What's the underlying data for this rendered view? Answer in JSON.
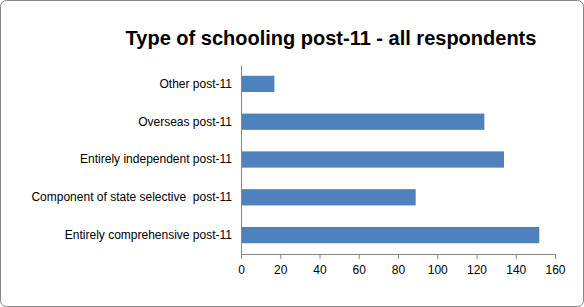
{
  "chart_data": {
    "type": "bar",
    "orientation": "horizontal",
    "title": "Type of schooling post-11 - all respondents",
    "categories": [
      "Other post-11",
      "Overseas post-11",
      "Entirely independent post-11",
      "Component of state selective  post-11",
      "Entirely comprehensive post-11"
    ],
    "values": [
      17,
      124,
      134,
      89,
      152
    ],
    "color": "#4f81bd",
    "xlim": [
      0,
      160
    ],
    "xticks": [
      0,
      20,
      40,
      60,
      80,
      100,
      120,
      140,
      160
    ],
    "grid": false
  }
}
